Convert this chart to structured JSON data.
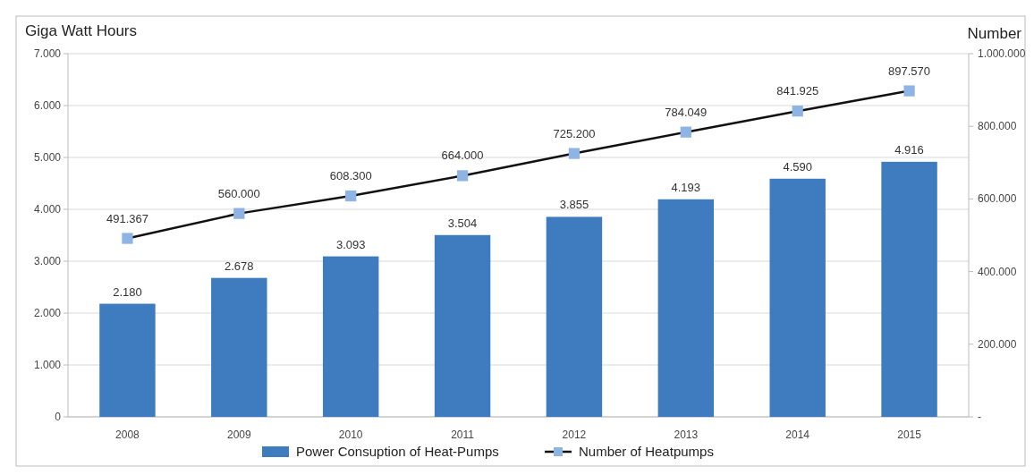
{
  "chart_data": {
    "type": "bar",
    "ylabel": "Giga Watt Hours",
    "y2label": "Number",
    "categories": [
      "2008",
      "2009",
      "2010",
      "2011",
      "2012",
      "2013",
      "2014",
      "2015"
    ],
    "series": [
      {
        "name": "Power Consuption of Heat-Pumps",
        "color": "#3f7bbf",
        "values": [
          2180,
          2678,
          3093,
          3504,
          3855,
          4193,
          4590,
          4916
        ],
        "value_labels": [
          "2.180",
          "2.678",
          "3.093",
          "3.504",
          "3.855",
          "4.193",
          "4.590",
          "4.916"
        ]
      },
      {
        "name": "Number of Heatpumps",
        "type": "line",
        "axis": "y2",
        "color": "#8db4e2",
        "marker": "square",
        "values": [
          491367,
          560000,
          608300,
          664000,
          725200,
          784049,
          841925,
          897570
        ],
        "value_labels": [
          "491.367",
          "560.000",
          "608.300",
          "664.000",
          "725.200",
          "784.049",
          "841.925",
          "897.570"
        ]
      }
    ],
    "ylim": [
      0,
      7000
    ],
    "yticks": [
      {
        "value": 0,
        "label": "0"
      },
      {
        "value": 1000,
        "label": "1.000"
      },
      {
        "value": 2000,
        "label": "2.000"
      },
      {
        "value": 3000,
        "label": "3.000"
      },
      {
        "value": 4000,
        "label": "4.000"
      },
      {
        "value": 5000,
        "label": "5.000"
      },
      {
        "value": 6000,
        "label": "6.000"
      },
      {
        "value": 7000,
        "label": "7.000"
      }
    ],
    "y2lim": [
      0,
      1000000
    ],
    "y2ticks": [
      {
        "value": 0,
        "label": "-"
      },
      {
        "value": 200000,
        "label": "200.000"
      },
      {
        "value": 400000,
        "label": "400.000"
      },
      {
        "value": 600000,
        "label": "600.000"
      },
      {
        "value": 800000,
        "label": "800.000"
      },
      {
        "value": 1000000,
        "label": "1.000.000"
      }
    ],
    "grid": "y",
    "legend": "bottom"
  }
}
